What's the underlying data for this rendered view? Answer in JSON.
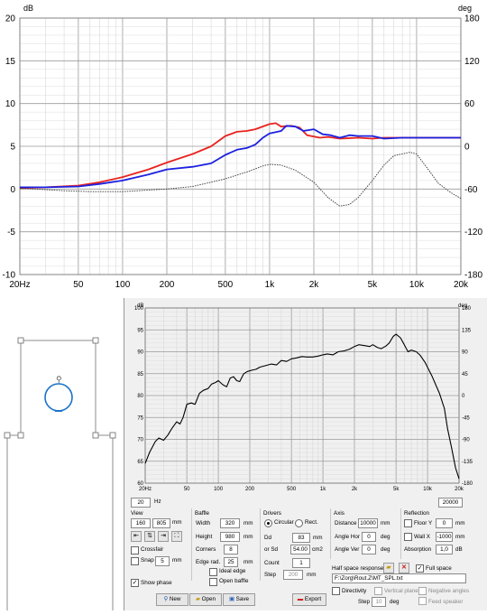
{
  "top_chart": {
    "left_axis_unit": "dB",
    "right_axis_unit": "deg",
    "left_ticks": [
      "20",
      "15",
      "10",
      "5",
      "0",
      "-5",
      "-10"
    ],
    "right_ticks": [
      "180",
      "120",
      "60",
      "0",
      "-60",
      "-120",
      "-180"
    ],
    "x_ticks": [
      "20Hz",
      "50",
      "100",
      "200",
      "500",
      "1k",
      "2k",
      "5k",
      "10k",
      "20k"
    ]
  },
  "bottom_chart": {
    "left_axis_unit": "dB",
    "right_axis_unit": "deg",
    "left_ticks": [
      "100",
      "95",
      "90",
      "85",
      "80",
      "75",
      "70",
      "65",
      "60"
    ],
    "right_ticks": [
      "180",
      "135",
      "90",
      "45",
      "0",
      "-45",
      "-90",
      "-135",
      "-180"
    ],
    "x_ticks": [
      "20Hz",
      "50",
      "100",
      "200",
      "500",
      "1k",
      "2k",
      "5k",
      "10k",
      "20k"
    ]
  },
  "chart_data": [
    {
      "type": "line",
      "x_scale": "log",
      "xlim": [
        20,
        20000
      ],
      "ylim": [
        -10,
        20
      ],
      "y2lim": [
        -180,
        180
      ],
      "ylabel": "dB",
      "y2label": "deg",
      "grid": true,
      "series": [
        {
          "color": "#e8231f",
          "axis": "left",
          "points": [
            [
              20,
              0.1
            ],
            [
              30,
              0.2
            ],
            [
              50,
              0.4
            ],
            [
              70,
              0.8
            ],
            [
              100,
              1.4
            ],
            [
              150,
              2.3
            ],
            [
              200,
              3.1
            ],
            [
              300,
              4.1
            ],
            [
              400,
              5.0
            ],
            [
              500,
              6.2
            ],
            [
              600,
              6.7
            ],
            [
              700,
              6.8
            ],
            [
              800,
              7.0
            ],
            [
              1000,
              7.6
            ],
            [
              1100,
              7.7
            ],
            [
              1200,
              7.3
            ],
            [
              1400,
              7.4
            ],
            [
              1600,
              7.2
            ],
            [
              1800,
              6.3
            ],
            [
              2200,
              6.0
            ],
            [
              2500,
              6.1
            ],
            [
              3000,
              5.9
            ],
            [
              4000,
              6.0
            ],
            [
              5000,
              5.9
            ],
            [
              6000,
              6.0
            ],
            [
              8000,
              6.0
            ],
            [
              10000,
              6.0
            ],
            [
              20000,
              6.0
            ]
          ]
        },
        {
          "color": "#1b21e0",
          "axis": "left",
          "points": [
            [
              20,
              0.2
            ],
            [
              30,
              0.2
            ],
            [
              50,
              0.3
            ],
            [
              70,
              0.6
            ],
            [
              100,
              1.0
            ],
            [
              150,
              1.7
            ],
            [
              200,
              2.3
            ],
            [
              300,
              2.6
            ],
            [
              400,
              3.0
            ],
            [
              500,
              4.0
            ],
            [
              600,
              4.6
            ],
            [
              700,
              4.8
            ],
            [
              800,
              5.2
            ],
            [
              900,
              6.0
            ],
            [
              1000,
              6.5
            ],
            [
              1200,
              6.8
            ],
            [
              1300,
              7.4
            ],
            [
              1500,
              7.3
            ],
            [
              1700,
              6.8
            ],
            [
              2000,
              7.0
            ],
            [
              2300,
              6.4
            ],
            [
              2600,
              6.3
            ],
            [
              3000,
              6.0
            ],
            [
              3500,
              6.3
            ],
            [
              4000,
              6.2
            ],
            [
              5000,
              6.2
            ],
            [
              6000,
              5.9
            ],
            [
              8000,
              6.0
            ],
            [
              10000,
              6.0
            ],
            [
              20000,
              6.0
            ]
          ]
        },
        {
          "color": "#333333",
          "axis": "left",
          "style": "dotted",
          "points": [
            [
              20,
              0.1
            ],
            [
              40,
              -0.2
            ],
            [
              60,
              -0.3
            ],
            [
              100,
              -0.3
            ],
            [
              200,
              0.0
            ],
            [
              300,
              0.3
            ],
            [
              500,
              1.2
            ],
            [
              700,
              2.0
            ],
            [
              900,
              2.7
            ],
            [
              1000,
              2.9
            ],
            [
              1200,
              2.8
            ],
            [
              1500,
              2.2
            ],
            [
              2000,
              0.8
            ],
            [
              2500,
              -1.0
            ],
            [
              3000,
              -2.0
            ],
            [
              3500,
              -1.8
            ],
            [
              4000,
              -1.0
            ],
            [
              5000,
              1.0
            ],
            [
              6000,
              2.8
            ],
            [
              7000,
              3.9
            ],
            [
              9000,
              4.3
            ],
            [
              10000,
              4.1
            ],
            [
              12000,
              2.3
            ],
            [
              14000,
              0.7
            ],
            [
              17000,
              -0.4
            ],
            [
              20000,
              -1.1
            ]
          ]
        }
      ]
    },
    {
      "type": "line",
      "x_scale": "log",
      "xlim": [
        20,
        20000
      ],
      "ylim": [
        60,
        100
      ],
      "y2lim": [
        -180,
        180
      ],
      "ylabel": "dB",
      "y2label": "deg",
      "grid": true,
      "series": [
        {
          "color": "#000000",
          "axis": "left",
          "points": [
            [
              20,
              64.5
            ],
            [
              22,
              67
            ],
            [
              25,
              69.5
            ],
            [
              27,
              70.3
            ],
            [
              30,
              69.8
            ],
            [
              33,
              71
            ],
            [
              36,
              72.5
            ],
            [
              40,
              74
            ],
            [
              43,
              73.5
            ],
            [
              46,
              75
            ],
            [
              50,
              78
            ],
            [
              55,
              78.3
            ],
            [
              60,
              78
            ],
            [
              66,
              80.5
            ],
            [
              72,
              81.2
            ],
            [
              80,
              81.6
            ],
            [
              86,
              82.6
            ],
            [
              94,
              83
            ],
            [
              100,
              83.4
            ],
            [
              110,
              82.5
            ],
            [
              120,
              82
            ],
            [
              130,
              84
            ],
            [
              140,
              84.3
            ],
            [
              150,
              83.4
            ],
            [
              160,
              83.2
            ],
            [
              175,
              85
            ],
            [
              190,
              85.5
            ],
            [
              210,
              85.8
            ],
            [
              230,
              86
            ],
            [
              250,
              86.5
            ],
            [
              280,
              86.8
            ],
            [
              320,
              87.2
            ],
            [
              360,
              87
            ],
            [
              400,
              88
            ],
            [
              450,
              87.8
            ],
            [
              500,
              88.4
            ],
            [
              560,
              88.6
            ],
            [
              630,
              88.9
            ],
            [
              700,
              88.8
            ],
            [
              800,
              88.8
            ],
            [
              900,
              89
            ],
            [
              1000,
              89.3
            ],
            [
              1100,
              89.5
            ],
            [
              1250,
              89.3
            ],
            [
              1400,
              90
            ],
            [
              1600,
              90.2
            ],
            [
              1800,
              90.6
            ],
            [
              2000,
              91.2
            ],
            [
              2200,
              91.6
            ],
            [
              2500,
              91.4
            ],
            [
              2800,
              91.2
            ],
            [
              3000,
              91.6
            ],
            [
              3300,
              91
            ],
            [
              3600,
              90.7
            ],
            [
              4000,
              91.3
            ],
            [
              4300,
              92
            ],
            [
              4700,
              93.5
            ],
            [
              5000,
              94
            ],
            [
              5500,
              93.2
            ],
            [
              6000,
              91.6
            ],
            [
              6500,
              90
            ],
            [
              7000,
              90.4
            ],
            [
              7800,
              90
            ],
            [
              8500,
              89.2
            ],
            [
              9500,
              87.5
            ],
            [
              11000,
              84.5
            ],
            [
              13000,
              80.5
            ],
            [
              14500,
              77
            ],
            [
              15500,
              72.5
            ],
            [
              17000,
              68
            ],
            [
              18500,
              63.5
            ],
            [
              20000,
              61
            ]
          ]
        }
      ]
    }
  ],
  "controls": {
    "freq_min": "20",
    "freq_unit": "Hz",
    "freq_max": "20000",
    "view": {
      "title": "View",
      "w": "160",
      "h": "805",
      "unit": "mm",
      "crossfair": "Crossfair",
      "snap": "Snap",
      "snap_value": "5",
      "snap_unit": "mm",
      "show_phase": "Show phase"
    },
    "baffle": {
      "title": "Baffle",
      "width_label": "Width",
      "width": "320",
      "height_label": "Height",
      "height": "980",
      "corners_label": "Corners",
      "corners": "8",
      "edge_label": "Edge rad.",
      "edge": "25",
      "unit": "mm",
      "ideal_edge": "Ideal edge",
      "open_baffle": "Open baffle"
    },
    "drivers": {
      "title": "Drivers",
      "circular": "Circular",
      "rect": "Rect.",
      "dd_label": "Dd",
      "dd": "83",
      "dd_unit": "mm",
      "sd_label": "or Sd",
      "sd": "54.00",
      "sd_unit": "cm2",
      "count_label": "Count",
      "count": "1",
      "step_label": "Step",
      "step": "200",
      "step_unit": "mm"
    },
    "axis": {
      "title": "Axis",
      "distance_label": "Distance",
      "distance": "10000",
      "distance_unit": "mm",
      "hor_label": "Angle Hor",
      "hor": "0",
      "ver_label": "Angle Ver",
      "ver": "0",
      "deg": "deg"
    },
    "reflection": {
      "title": "Reflection",
      "floor_label": "Floor Y",
      "floor": "0",
      "wall_label": "Wall X",
      "wall": "-1000",
      "unit": "mm",
      "absorption_label": "Absorption",
      "absorption": "1,0",
      "absorption_unit": "dB"
    },
    "half_space": {
      "label": "Half space response",
      "full_space": "Full space",
      "path": "F:\\Zorg\\Rout.Z\\MT_SPL.txt"
    },
    "directivity": {
      "label": "Directivity",
      "vertical_planes": "Vertical planes",
      "negative_angles": "Negative angles",
      "step_label": "Step",
      "step": "10",
      "step_unit": "deg",
      "feed_speaker": "Feed speaker"
    },
    "buttons": {
      "new": "New",
      "open": "Open",
      "save": "Save",
      "export": "Export"
    }
  },
  "colors": {
    "red": "#e8231f",
    "blue": "#1b21e0",
    "panel": "#f0f0f0",
    "accent": "#1a73c7"
  }
}
